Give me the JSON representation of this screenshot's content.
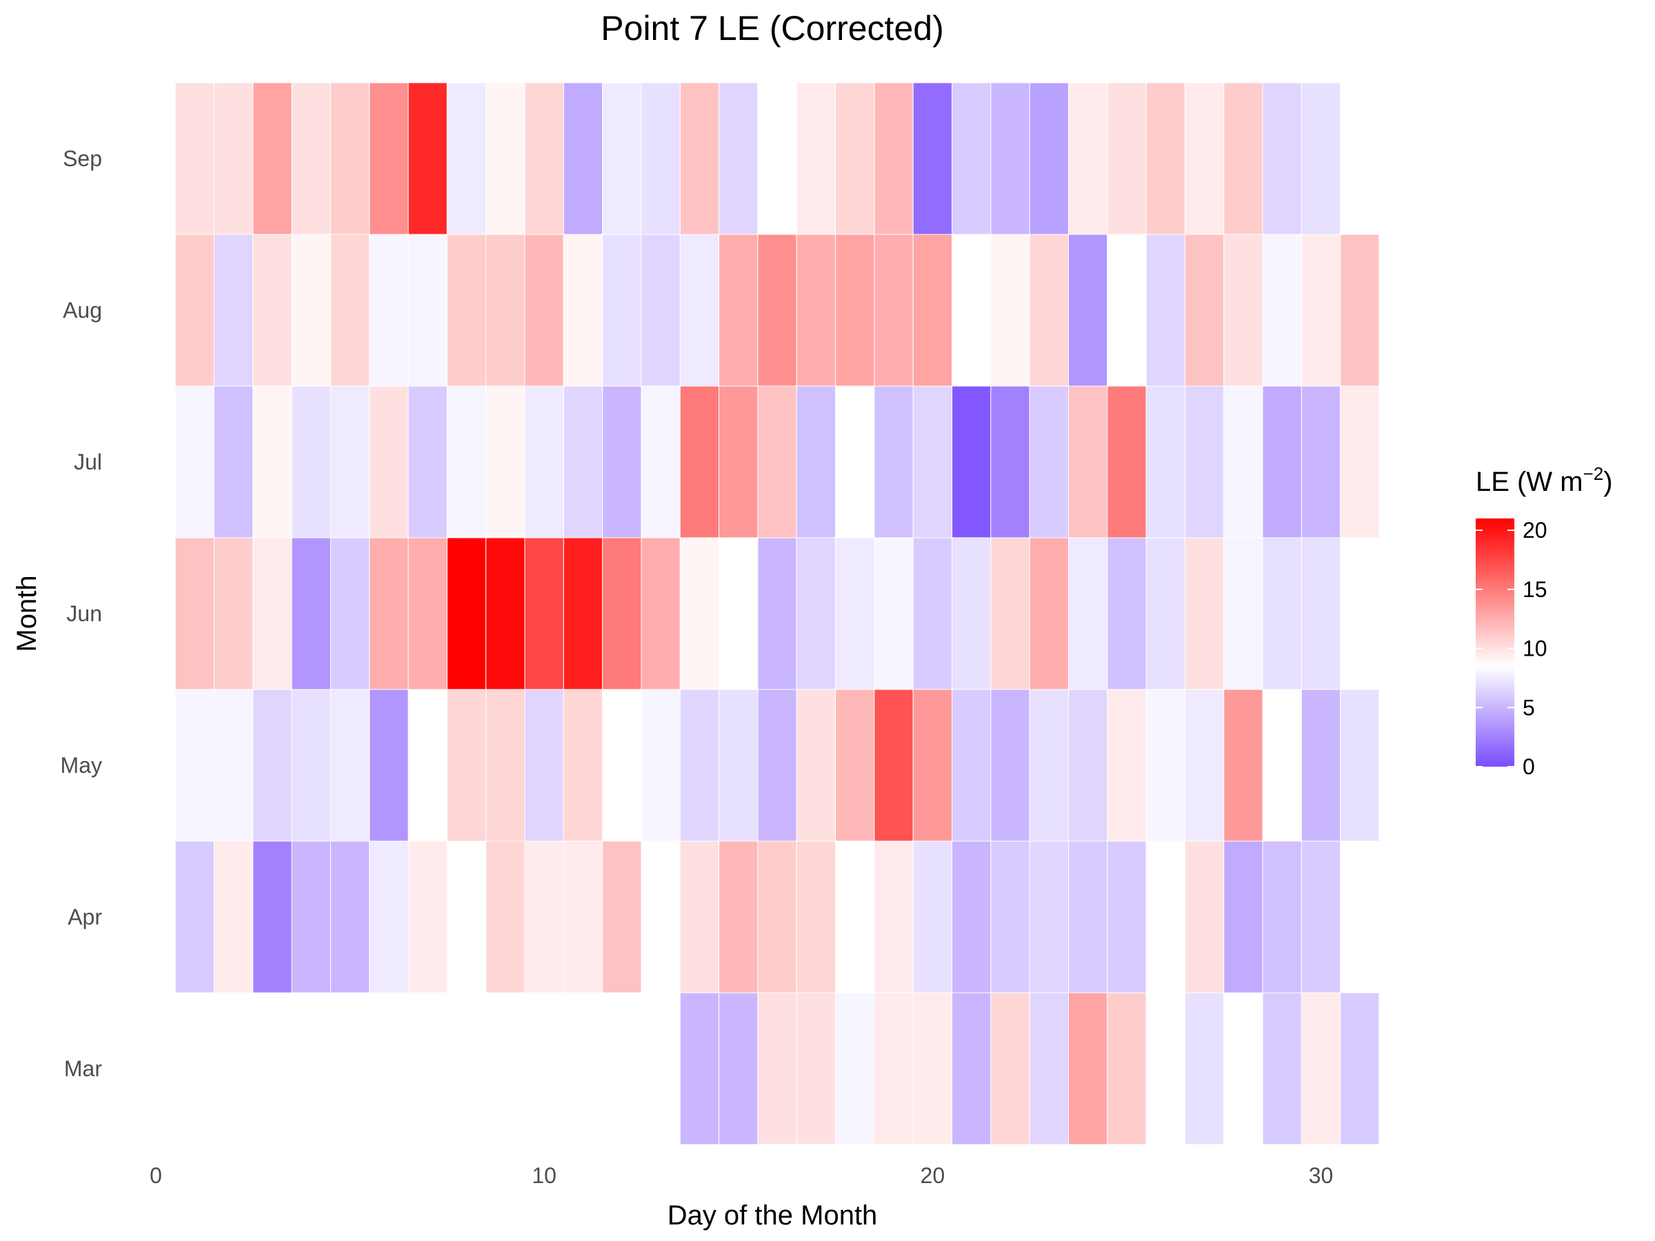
{
  "chart_data": {
    "type": "heatmap",
    "title": "Point 7 LE (Corrected)",
    "xlabel": "Day of the Month",
    "ylabel": "Month",
    "xlim": [
      0,
      31.5
    ],
    "x_ticks": [
      0,
      10,
      20,
      30
    ],
    "months": [
      "Mar",
      "Apr",
      "May",
      "Jun",
      "Jul",
      "Aug",
      "Sep"
    ],
    "legend": {
      "title_main": "LE (W m",
      "title_sup": "−2",
      "title_close": ")",
      "ticks": [
        0,
        5,
        10,
        15,
        20
      ],
      "range": [
        0,
        21
      ],
      "midpoint": 8.5,
      "low_color": "#7b4dff",
      "mid_color": "#ffffff",
      "high_color": "#ff0000",
      "placement": "right"
    },
    "grid": false,
    "cells": {
      "Sep": [
        10,
        10,
        13,
        10,
        11,
        14,
        19,
        7.5,
        9,
        10.5,
        4.5,
        7.5,
        7,
        11.5,
        6.5,
        8.5,
        9.5,
        10.5,
        12,
        1.5,
        6,
        5,
        4,
        9.5,
        10,
        11,
        9.5,
        11,
        6.5,
        7
      ],
      "Aug": [
        11,
        6.5,
        10,
        9,
        10.5,
        8,
        8,
        11,
        11,
        12,
        9,
        7,
        6.5,
        7.5,
        12.5,
        14,
        12.5,
        13,
        12.5,
        13,
        8.5,
        9,
        10.5,
        3.5,
        8.5,
        6.5,
        11.5,
        10,
        8,
        9.5,
        11.5
      ],
      "Jul": [
        8,
        5.5,
        9,
        7,
        7.5,
        10,
        6,
        8,
        9,
        7.5,
        6.5,
        5,
        8,
        15,
        13.5,
        11.5,
        5.5,
        8.5,
        5.5,
        6.5,
        0.5,
        2.5,
        6,
        11.5,
        15,
        7,
        6.5,
        8,
        4.5,
        5,
        9.5
      ],
      "Jun": [
        11.5,
        11,
        9.5,
        3.5,
        6,
        12.5,
        12.5,
        21,
        20.5,
        17.5,
        19.5,
        15,
        12.5,
        9,
        8.5,
        5,
        6.5,
        7.5,
        8,
        6,
        7,
        10.5,
        12.5,
        7.5,
        5.5,
        7,
        10,
        8,
        7,
        7
      ],
      "May": [
        8,
        8,
        6.5,
        7,
        7.5,
        3.5,
        8.5,
        10.5,
        10.5,
        6.5,
        10.5,
        8.5,
        8,
        6.5,
        7,
        5,
        10,
        12,
        17,
        13.5,
        6,
        5,
        7,
        6.5,
        9.5,
        8,
        7.5,
        13.5,
        8.5,
        5,
        7
      ],
      "Apr": [
        6,
        9.5,
        2.5,
        5,
        5,
        7.5,
        9.5,
        8.5,
        10.5,
        9.5,
        9.5,
        11.5,
        8.5,
        10,
        12,
        11,
        10.5,
        8.5,
        9.5,
        7,
        5,
        6,
        6.5,
        6,
        6,
        8.5,
        10,
        4.5,
        5.5,
        6
      ],
      "Mar": [
        null,
        null,
        null,
        null,
        null,
        null,
        null,
        null,
        null,
        null,
        null,
        null,
        null,
        5,
        5,
        10,
        10,
        8,
        9.5,
        9.5,
        5,
        10.5,
        6.5,
        13,
        11,
        8.5,
        7,
        8.5,
        6,
        9.5,
        6
      ]
    }
  }
}
